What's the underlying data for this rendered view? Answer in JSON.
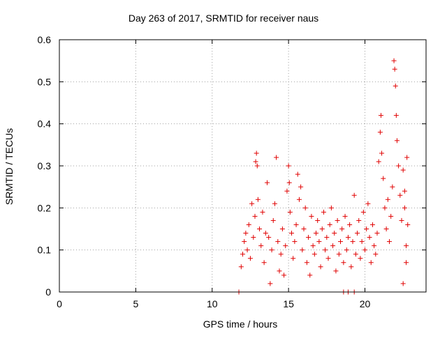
{
  "chart_data": {
    "type": "scatter",
    "title": "Day 263 of 2017, SRMTID for receiver naus",
    "xlabel": "GPS time / hours",
    "ylabel": "SRMTID / TECUs",
    "xlim": [
      0,
      24
    ],
    "ylim": [
      0,
      0.6
    ],
    "xticks": [
      0,
      5,
      10,
      15,
      20
    ],
    "xtick_labels": [
      "0",
      "5",
      "10",
      "15",
      "20"
    ],
    "yticks": [
      0,
      0.1,
      0.2,
      0.3,
      0.4,
      0.5,
      0.6
    ],
    "ytick_labels": [
      "0",
      "0.1",
      "0.2",
      "0.3",
      "0.4",
      "0.5",
      "0.6"
    ],
    "grid": true,
    "marker": "+",
    "color": "#e00000",
    "series": [
      {
        "name": "SRMTID",
        "points": [
          [
            11.75,
            0.0
          ],
          [
            18.6,
            0.0
          ],
          [
            18.9,
            0.0
          ],
          [
            19.3,
            0.0
          ],
          [
            11.9,
            0.06
          ],
          [
            12.0,
            0.09
          ],
          [
            12.1,
            0.12
          ],
          [
            12.2,
            0.14
          ],
          [
            12.3,
            0.1
          ],
          [
            12.4,
            0.16
          ],
          [
            12.5,
            0.08
          ],
          [
            12.6,
            0.21
          ],
          [
            12.7,
            0.13
          ],
          [
            12.8,
            0.18
          ],
          [
            12.85,
            0.31
          ],
          [
            12.9,
            0.33
          ],
          [
            12.95,
            0.3
          ],
          [
            13.0,
            0.22
          ],
          [
            13.1,
            0.15
          ],
          [
            13.2,
            0.11
          ],
          [
            13.3,
            0.19
          ],
          [
            13.4,
            0.07
          ],
          [
            13.5,
            0.14
          ],
          [
            13.6,
            0.26
          ],
          [
            13.7,
            0.13
          ],
          [
            13.8,
            0.02
          ],
          [
            13.9,
            0.1
          ],
          [
            14.0,
            0.17
          ],
          [
            14.1,
            0.21
          ],
          [
            14.2,
            0.32
          ],
          [
            14.3,
            0.12
          ],
          [
            14.4,
            0.05
          ],
          [
            14.5,
            0.09
          ],
          [
            14.6,
            0.15
          ],
          [
            14.7,
            0.04
          ],
          [
            14.8,
            0.11
          ],
          [
            14.9,
            0.24
          ],
          [
            15.0,
            0.3
          ],
          [
            15.05,
            0.26
          ],
          [
            15.1,
            0.19
          ],
          [
            15.2,
            0.14
          ],
          [
            15.3,
            0.08
          ],
          [
            15.4,
            0.12
          ],
          [
            15.5,
            0.16
          ],
          [
            15.6,
            0.28
          ],
          [
            15.7,
            0.22
          ],
          [
            15.8,
            0.25
          ],
          [
            15.9,
            0.1
          ],
          [
            16.0,
            0.15
          ],
          [
            16.1,
            0.2
          ],
          [
            16.2,
            0.07
          ],
          [
            16.3,
            0.13
          ],
          [
            16.4,
            0.04
          ],
          [
            16.5,
            0.18
          ],
          [
            16.6,
            0.11
          ],
          [
            16.7,
            0.09
          ],
          [
            16.8,
            0.14
          ],
          [
            16.9,
            0.17
          ],
          [
            17.0,
            0.12
          ],
          [
            17.1,
            0.06
          ],
          [
            17.2,
            0.15
          ],
          [
            17.3,
            0.19
          ],
          [
            17.4,
            0.1
          ],
          [
            17.5,
            0.13
          ],
          [
            17.6,
            0.08
          ],
          [
            17.7,
            0.16
          ],
          [
            17.8,
            0.2
          ],
          [
            17.9,
            0.11
          ],
          [
            18.0,
            0.14
          ],
          [
            18.1,
            0.05
          ],
          [
            18.2,
            0.17
          ],
          [
            18.3,
            0.09
          ],
          [
            18.4,
            0.12
          ],
          [
            18.5,
            0.15
          ],
          [
            18.6,
            0.07
          ],
          [
            18.7,
            0.18
          ],
          [
            18.8,
            0.1
          ],
          [
            18.9,
            0.13
          ],
          [
            19.0,
            0.16
          ],
          [
            19.1,
            0.06
          ],
          [
            19.2,
            0.12
          ],
          [
            19.3,
            0.23
          ],
          [
            19.4,
            0.09
          ],
          [
            19.5,
            0.14
          ],
          [
            19.6,
            0.17
          ],
          [
            19.7,
            0.08
          ],
          [
            19.8,
            0.12
          ],
          [
            19.9,
            0.19
          ],
          [
            20.0,
            0.1
          ],
          [
            20.1,
            0.15
          ],
          [
            20.2,
            0.21
          ],
          [
            20.3,
            0.13
          ],
          [
            20.4,
            0.07
          ],
          [
            20.5,
            0.16
          ],
          [
            20.6,
            0.11
          ],
          [
            20.7,
            0.09
          ],
          [
            20.8,
            0.14
          ],
          [
            20.9,
            0.31
          ],
          [
            21.0,
            0.38
          ],
          [
            21.05,
            0.42
          ],
          [
            21.1,
            0.33
          ],
          [
            21.2,
            0.27
          ],
          [
            21.3,
            0.2
          ],
          [
            21.4,
            0.15
          ],
          [
            21.5,
            0.22
          ],
          [
            21.6,
            0.12
          ],
          [
            21.7,
            0.18
          ],
          [
            21.8,
            0.25
          ],
          [
            21.9,
            0.55
          ],
          [
            21.95,
            0.53
          ],
          [
            22.0,
            0.49
          ],
          [
            22.05,
            0.42
          ],
          [
            22.1,
            0.36
          ],
          [
            22.2,
            0.3
          ],
          [
            22.3,
            0.23
          ],
          [
            22.4,
            0.17
          ],
          [
            22.5,
            0.29
          ],
          [
            22.6,
            0.2
          ],
          [
            22.7,
            0.11
          ],
          [
            22.75,
            0.32
          ],
          [
            22.8,
            0.16
          ],
          [
            22.5,
            0.02
          ],
          [
            22.6,
            0.24
          ],
          [
            22.7,
            0.07
          ]
        ]
      }
    ]
  }
}
